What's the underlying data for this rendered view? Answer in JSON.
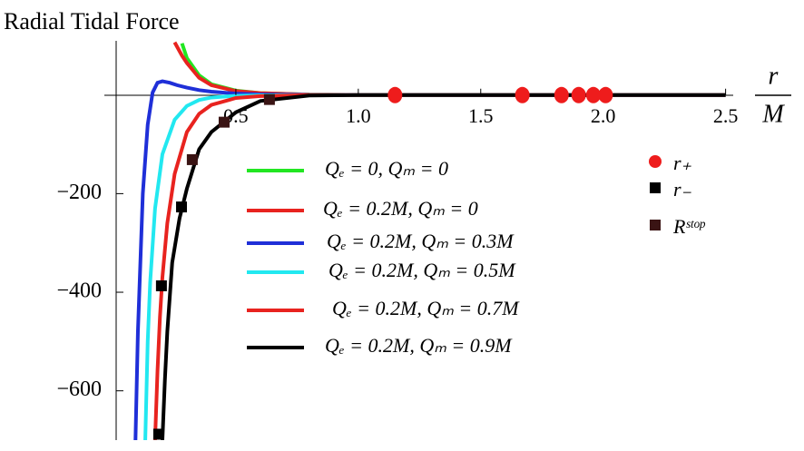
{
  "chart_data": {
    "type": "line",
    "title": "Radial Tidal Force",
    "xlabel": "r",
    "xlabel_unit": "M",
    "xlim": [
      0,
      2.52
    ],
    "ylim": [
      -700,
      110
    ],
    "xticks": [
      0.5,
      {
        "value": 1.0,
        "label": "1.0"
      },
      1.5,
      {
        "value": 2.0,
        "label": "2.0"
      },
      2.5
    ],
    "yticks": [
      {
        "value": -600,
        "label": "−600"
      },
      {
        "value": -400,
        "label": "−400"
      },
      {
        "value": -200,
        "label": "−200"
      }
    ],
    "series": [
      {
        "name": "Qₑ = 0,  Qₘ = 0",
        "color": "#22e622",
        "x": [
          0.28,
          0.3,
          0.35,
          0.4,
          0.5,
          0.6,
          0.8,
          1.0,
          1.5,
          2.0,
          2.5
        ],
        "values": [
          105,
          75,
          40,
          22,
          9,
          4,
          1,
          0.3,
          0,
          0,
          0
        ]
      },
      {
        "name": "Qₑ = 0.2M,  Qₘ = 0",
        "color": "#e8231f",
        "x": [
          0.25,
          0.28,
          0.3,
          0.35,
          0.4,
          0.5,
          0.6,
          0.8,
          1.0,
          1.5,
          2.0,
          2.5
        ],
        "values": [
          107,
          80,
          65,
          35,
          20,
          8,
          4,
          1,
          0.3,
          0,
          0,
          0
        ]
      },
      {
        "name": "Qₑ = 0.2M,  Qₘ = 0.3M",
        "color": "#1f2fd8",
        "x": [
          0.09,
          0.1,
          0.12,
          0.14,
          0.16,
          0.18,
          0.2,
          0.23,
          0.26,
          0.3,
          0.35,
          0.4,
          0.5,
          0.6,
          0.8,
          1.0,
          1.5,
          2.0,
          2.5
        ],
        "values": [
          -700,
          -480,
          -200,
          -60,
          5,
          25,
          28,
          25,
          20,
          15,
          10,
          7,
          3,
          1.5,
          0.5,
          0.2,
          0,
          0,
          0
        ]
      },
      {
        "name": "Qₑ = 0.2M,  Qₘ = 0.5M",
        "color": "#22e8f0",
        "x": [
          0.13,
          0.14,
          0.15,
          0.17,
          0.2,
          0.25,
          0.3,
          0.35,
          0.4,
          0.5,
          0.6,
          0.8,
          1.0,
          1.5,
          2.0,
          2.5
        ],
        "values": [
          -700,
          -500,
          -380,
          -230,
          -120,
          -50,
          -22,
          -10,
          -5,
          -1.5,
          -0.5,
          0,
          0,
          0,
          0,
          0
        ]
      },
      {
        "name": "Qₑ = 0.2M,  Qₘ = 0.7M",
        "color": "#e8231f",
        "x": [
          0.17,
          0.18,
          0.19,
          0.2,
          0.22,
          0.25,
          0.3,
          0.35,
          0.4,
          0.5,
          0.6,
          0.8,
          1.0,
          1.5,
          2.0,
          2.5
        ],
        "values": [
          -700,
          -560,
          -450,
          -370,
          -260,
          -160,
          -75,
          -38,
          -20,
          -6,
          -2,
          0,
          0,
          0,
          0,
          0
        ]
      },
      {
        "name": "Qₑ = 0.2M,  Qₘ = 0.9M",
        "color": "#000000",
        "x": [
          0.2,
          0.21,
          0.22,
          0.24,
          0.27,
          0.3,
          0.35,
          0.4,
          0.45,
          0.5,
          0.6,
          0.8,
          1.0,
          1.5,
          2.0,
          2.5
        ],
        "values": [
          -700,
          -580,
          -480,
          -340,
          -250,
          -190,
          -110,
          -75,
          -55,
          -35,
          -12,
          -1,
          0,
          0,
          0,
          0
        ]
      }
    ],
    "markers": [
      {
        "name": "r₊",
        "color": "#ee1c1c",
        "shape": "circle",
        "x": [
          1.15,
          1.67,
          1.83,
          1.9,
          1.96,
          2.01
        ],
        "values": [
          0,
          0,
          0,
          0,
          0,
          0
        ]
      },
      {
        "name": "r₋",
        "color": "#000000",
        "shape": "square",
        "x": [
          0.185,
          0.196,
          0.278
        ],
        "values": [
          -688,
          -387,
          -227
        ]
      },
      {
        "name": "Rˢᵗᵒᵖ",
        "color": "#3a1414",
        "shape": "square",
        "x": [
          0.322,
          0.452,
          0.637
        ],
        "values": [
          -131,
          -55,
          -9
        ]
      }
    ]
  }
}
